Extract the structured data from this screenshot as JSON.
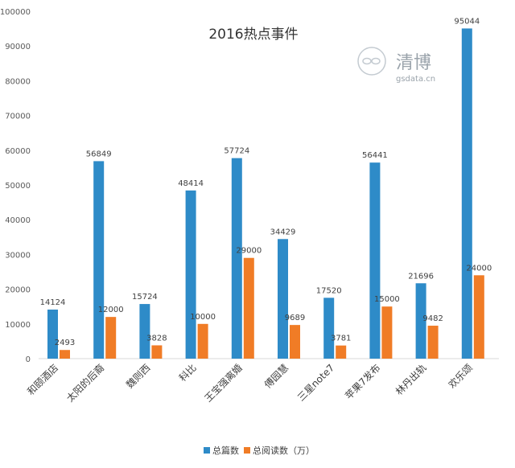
{
  "chart_data": {
    "type": "bar",
    "title": "2016热点事件",
    "categories": [
      "和颐酒店",
      "太阳的后裔",
      "魏则西",
      "科比",
      "王宝强离婚",
      "傅园慧",
      "三星note7",
      "苹果7发布",
      "林丹出轨",
      "欢乐颂"
    ],
    "series": [
      {
        "name": "总篇数",
        "color": "#2E8BC8",
        "values": [
          14124,
          56849,
          15724,
          48414,
          57724,
          34429,
          17520,
          56441,
          21696,
          95044
        ]
      },
      {
        "name": "总阅读数（万）",
        "color": "#F07C26",
        "values": [
          2493,
          12000,
          3828,
          10000,
          29000,
          9689,
          3781,
          15000,
          9482,
          24000
        ]
      }
    ],
    "ylim": [
      0,
      100000
    ],
    "yticks": [
      0,
      10000,
      20000,
      30000,
      40000,
      50000,
      60000,
      70000,
      80000,
      90000,
      100000
    ],
    "grid": false,
    "legend_position": "bottom"
  },
  "watermark": {
    "name": "清博",
    "domain": "gsdata.cn"
  }
}
